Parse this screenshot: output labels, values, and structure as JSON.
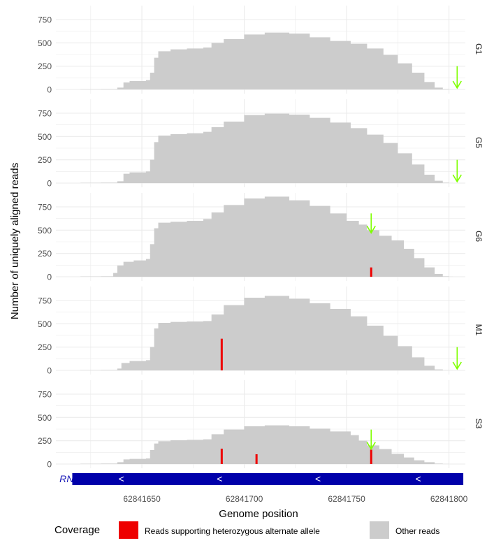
{
  "colors": {
    "other_reads": "#cccccc",
    "alt_allele": "#ee0000",
    "arrow": "#7fff00",
    "gene_bar": "#0000aa",
    "gene_label": "#1a1ab8",
    "grid": "#ebebeb",
    "text": "#333333"
  },
  "chart_data": {
    "type": "bar",
    "ylabel": "Number of uniquely aligned reads",
    "xlabel": "Genome position",
    "xlim": [
      62841608,
      62841808
    ],
    "ylim": [
      0,
      870
    ],
    "x_ticks": [
      62841650,
      62841700,
      62841750,
      62841800
    ],
    "x_tick_labels": [
      "62841650",
      "62841700",
      "62841750",
      "62841800"
    ],
    "y_ticks": [
      0,
      250,
      500,
      750
    ],
    "y_tick_labels": [
      "0",
      "250",
      "500",
      "750"
    ],
    "grid": true,
    "facets": [
      {
        "name": "G1",
        "coverage": [
          [
            62841620,
            3
          ],
          [
            62841630,
            5
          ],
          [
            62841638,
            20
          ],
          [
            62841641,
            75
          ],
          [
            62841644,
            90
          ],
          [
            62841652,
            100
          ],
          [
            62841654,
            180
          ],
          [
            62841656,
            340
          ],
          [
            62841658,
            410
          ],
          [
            62841664,
            430
          ],
          [
            62841672,
            440
          ],
          [
            62841680,
            450
          ],
          [
            62841684,
            500
          ],
          [
            62841690,
            540
          ],
          [
            62841700,
            590
          ],
          [
            62841710,
            610
          ],
          [
            62841722,
            600
          ],
          [
            62841732,
            560
          ],
          [
            62841742,
            520
          ],
          [
            62841752,
            490
          ],
          [
            62841760,
            440
          ],
          [
            62841768,
            370
          ],
          [
            62841775,
            280
          ],
          [
            62841782,
            180
          ],
          [
            62841788,
            80
          ],
          [
            62841793,
            20
          ],
          [
            62841797,
            5
          ],
          [
            62841800,
            1
          ]
        ],
        "alt_reads": [],
        "arrow_position": 62841804
      },
      {
        "name": "G5",
        "coverage": [
          [
            62841620,
            3
          ],
          [
            62841630,
            5
          ],
          [
            62841638,
            20
          ],
          [
            62841641,
            100
          ],
          [
            62841644,
            115
          ],
          [
            62841652,
            125
          ],
          [
            62841654,
            250
          ],
          [
            62841656,
            440
          ],
          [
            62841658,
            510
          ],
          [
            62841664,
            525
          ],
          [
            62841672,
            535
          ],
          [
            62841680,
            550
          ],
          [
            62841684,
            600
          ],
          [
            62841690,
            660
          ],
          [
            62841700,
            730
          ],
          [
            62841710,
            745
          ],
          [
            62841722,
            735
          ],
          [
            62841732,
            700
          ],
          [
            62841742,
            650
          ],
          [
            62841752,
            590
          ],
          [
            62841760,
            520
          ],
          [
            62841768,
            430
          ],
          [
            62841775,
            320
          ],
          [
            62841782,
            200
          ],
          [
            62841788,
            90
          ],
          [
            62841793,
            25
          ],
          [
            62841797,
            5
          ],
          [
            62841800,
            1
          ]
        ],
        "alt_reads": [],
        "arrow_position": 62841804
      },
      {
        "name": "G6",
        "coverage": [
          [
            62841620,
            3
          ],
          [
            62841630,
            5
          ],
          [
            62841636,
            40
          ],
          [
            62841638,
            120
          ],
          [
            62841641,
            160
          ],
          [
            62841646,
            175
          ],
          [
            62841652,
            190
          ],
          [
            62841654,
            350
          ],
          [
            62841656,
            520
          ],
          [
            62841658,
            580
          ],
          [
            62841664,
            590
          ],
          [
            62841672,
            600
          ],
          [
            62841680,
            620
          ],
          [
            62841684,
            690
          ],
          [
            62841690,
            770
          ],
          [
            62841700,
            840
          ],
          [
            62841710,
            860
          ],
          [
            62841722,
            820
          ],
          [
            62841732,
            760
          ],
          [
            62841742,
            680
          ],
          [
            62841750,
            600
          ],
          [
            62841756,
            560
          ],
          [
            62841760,
            500
          ],
          [
            62841766,
            440
          ],
          [
            62841772,
            390
          ],
          [
            62841778,
            300
          ],
          [
            62841783,
            200
          ],
          [
            62841788,
            100
          ],
          [
            62841793,
            30
          ],
          [
            62841797,
            5
          ],
          [
            62841800,
            1
          ]
        ],
        "alt_reads": [
          [
            62841762,
            100
          ]
        ],
        "arrow_position": 62841762
      },
      {
        "name": "M1",
        "coverage": [
          [
            62841620,
            3
          ],
          [
            62841630,
            5
          ],
          [
            62841638,
            20
          ],
          [
            62841640,
            80
          ],
          [
            62841644,
            100
          ],
          [
            62841652,
            110
          ],
          [
            62841654,
            250
          ],
          [
            62841656,
            450
          ],
          [
            62841658,
            510
          ],
          [
            62841664,
            520
          ],
          [
            62841672,
            525
          ],
          [
            62841680,
            530
          ],
          [
            62841684,
            600
          ],
          [
            62841690,
            700
          ],
          [
            62841700,
            780
          ],
          [
            62841710,
            800
          ],
          [
            62841722,
            770
          ],
          [
            62841732,
            720
          ],
          [
            62841742,
            660
          ],
          [
            62841752,
            580
          ],
          [
            62841760,
            480
          ],
          [
            62841768,
            370
          ],
          [
            62841775,
            260
          ],
          [
            62841782,
            140
          ],
          [
            62841788,
            50
          ],
          [
            62841793,
            10
          ],
          [
            62841797,
            2
          ],
          [
            62841800,
            1
          ]
        ],
        "alt_reads": [
          [
            62841689,
            340
          ]
        ],
        "arrow_position": 62841804
      },
      {
        "name": "S3",
        "coverage": [
          [
            62841620,
            3
          ],
          [
            62841630,
            5
          ],
          [
            62841638,
            20
          ],
          [
            62841641,
            50
          ],
          [
            62841644,
            55
          ],
          [
            62841652,
            60
          ],
          [
            62841654,
            150
          ],
          [
            62841656,
            220
          ],
          [
            62841658,
            245
          ],
          [
            62841664,
            255
          ],
          [
            62841672,
            260
          ],
          [
            62841680,
            265
          ],
          [
            62841684,
            320
          ],
          [
            62841690,
            370
          ],
          [
            62841700,
            405
          ],
          [
            62841710,
            415
          ],
          [
            62841722,
            405
          ],
          [
            62841732,
            380
          ],
          [
            62841742,
            350
          ],
          [
            62841752,
            310
          ],
          [
            62841756,
            250
          ],
          [
            62841760,
            200
          ],
          [
            62841766,
            160
          ],
          [
            62841772,
            110
          ],
          [
            62841778,
            70
          ],
          [
            62841783,
            40
          ],
          [
            62841788,
            20
          ],
          [
            62841793,
            5
          ],
          [
            62841797,
            1
          ],
          [
            62841800,
            0
          ]
        ],
        "alt_reads": [
          [
            62841689,
            165
          ],
          [
            62841706,
            105
          ],
          [
            62841762,
            155
          ]
        ],
        "arrow_position": 62841762
      }
    ],
    "gene_track": {
      "label": "RNU2-2P",
      "start": 62841616,
      "end": 62841807,
      "strand_symbols": [
        "<",
        "<",
        "<",
        "<"
      ],
      "strand_positions": [
        62841640,
        62841688,
        62841736,
        62841785
      ]
    },
    "legend": {
      "title": "Coverage",
      "placement": "bottom",
      "items": [
        {
          "label": "Reads supporting heterozygous alternate allele",
          "color": "#ee0000"
        },
        {
          "label": "Other reads",
          "color": "#cccccc"
        }
      ]
    }
  }
}
